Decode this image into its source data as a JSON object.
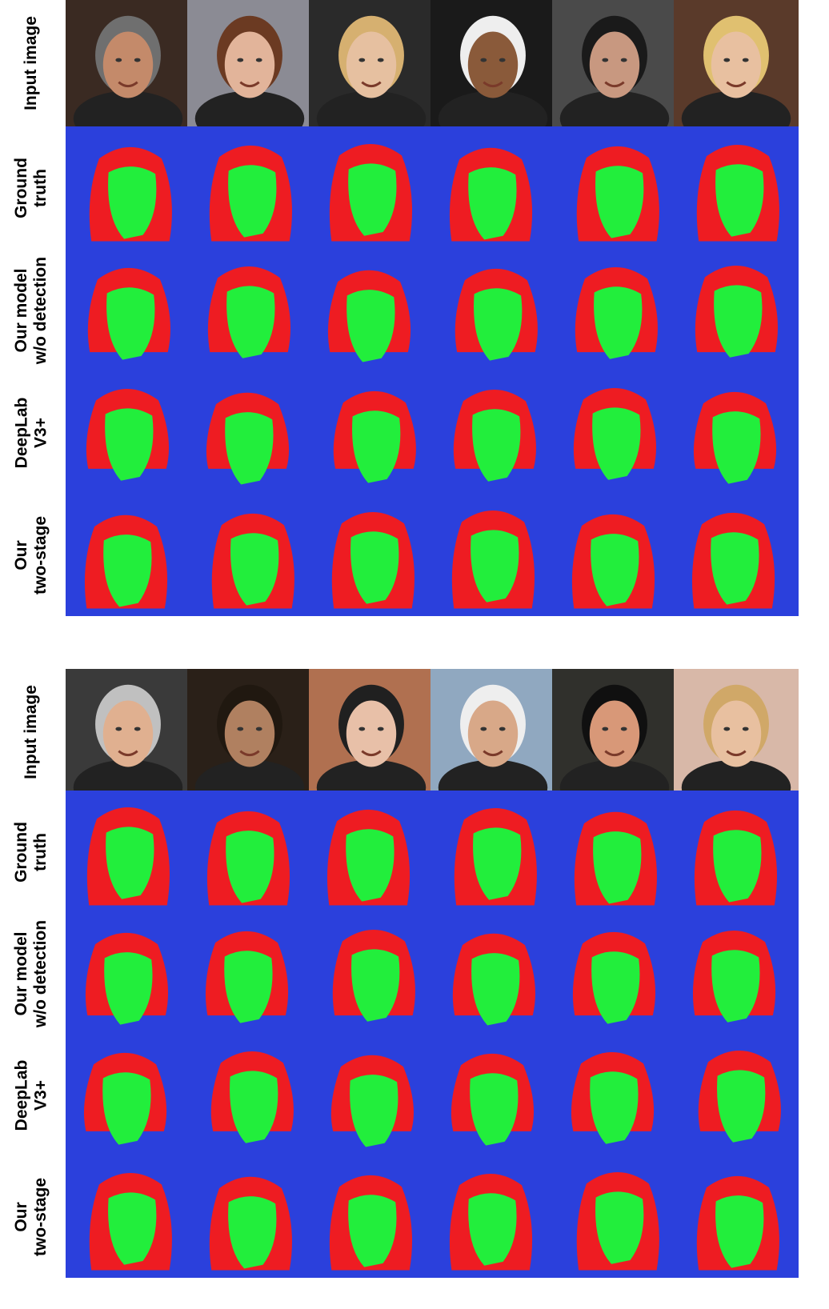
{
  "figure": {
    "panels": [
      {
        "rows": [
          {
            "label_lines": [
              "Input image"
            ]
          },
          {
            "label_lines": [
              "Ground",
              "truth"
            ]
          },
          {
            "label_lines": [
              "Our model",
              "w/o detection"
            ]
          },
          {
            "label_lines": [
              "DeepLab",
              "V3+"
            ]
          },
          {
            "label_lines": [
              "Our",
              "two-stage"
            ]
          }
        ],
        "columns": [
          {
            "photo": {
              "bg": "#3a2a22",
              "skin": "#c48a6a",
              "hair": "#6f6f6f"
            }
          },
          {
            "photo": {
              "bg": "#8b8b94",
              "skin": "#e2b49a",
              "hair": "#6b3a22"
            }
          },
          {
            "photo": {
              "bg": "#2a2a2a",
              "skin": "#e6c0a0",
              "hair": "#d6b070"
            }
          },
          {
            "photo": {
              "bg": "#1a1a1a",
              "skin": "#8a5a3a",
              "hair": "#eeeeee"
            }
          },
          {
            "photo": {
              "bg": "#4a4a4a",
              "skin": "#c89880",
              "hair": "#1a1a1a"
            }
          },
          {
            "photo": {
              "bg": "#5a3a2a",
              "skin": "#e8c0a0",
              "hair": "#e0c070"
            }
          }
        ]
      },
      {
        "rows": [
          {
            "label_lines": [
              "Input image"
            ]
          },
          {
            "label_lines": [
              "Ground",
              "truth"
            ]
          },
          {
            "label_lines": [
              "Our model",
              "w/o detection"
            ]
          },
          {
            "label_lines": [
              "DeepLab",
              "V3+"
            ]
          },
          {
            "label_lines": [
              "Our",
              "two-stage"
            ]
          }
        ],
        "columns": [
          {
            "photo": {
              "bg": "#3a3a3a",
              "skin": "#e0b090",
              "hair": "#c0c0c0"
            }
          },
          {
            "photo": {
              "bg": "#2a2018",
              "skin": "#b08060",
              "hair": "#201810"
            }
          },
          {
            "photo": {
              "bg": "#b07050",
              "skin": "#e8c0a8",
              "hair": "#202020"
            }
          },
          {
            "photo": {
              "bg": "#90a8c0",
              "skin": "#d8a888",
              "hair": "#eeeeee"
            }
          },
          {
            "photo": {
              "bg": "#30302c",
              "skin": "#d89878",
              "hair": "#101010"
            }
          },
          {
            "photo": {
              "bg": "#d8b8a8",
              "skin": "#e8c0a0",
              "hair": "#d0a868"
            }
          }
        ]
      }
    ],
    "colors": {
      "background_class": "#2f45e6",
      "skin_class": "#22ee3c",
      "hair_class": "#ee1c22"
    }
  }
}
